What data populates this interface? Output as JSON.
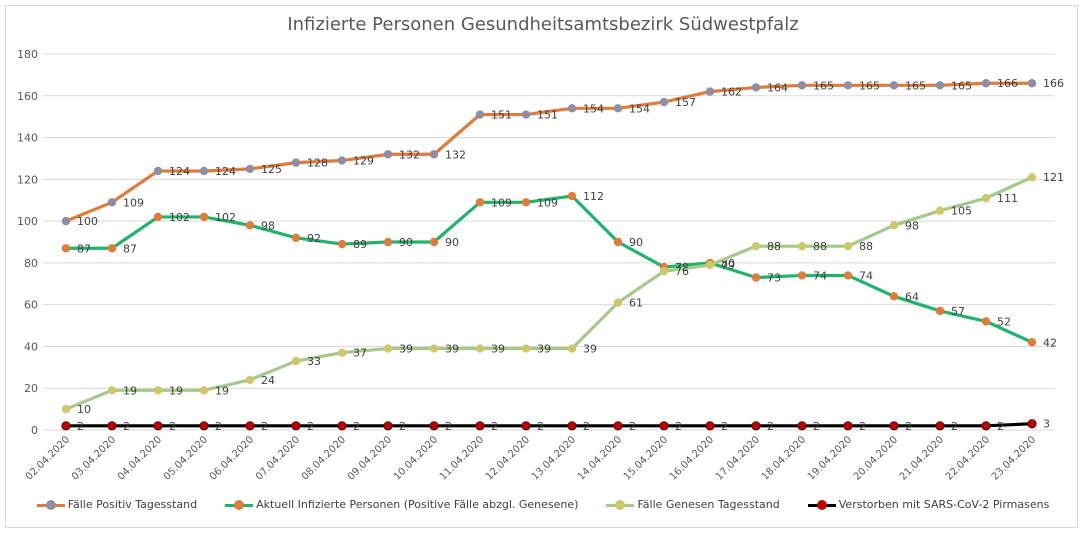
{
  "chart_data": {
    "type": "line",
    "title": "Infizierte Personen Gesundheitsamtsbezirk Südwestpfalz",
    "xlabel": "",
    "ylabel": "",
    "ylim": [
      0,
      180
    ],
    "yticks": [
      0,
      20,
      40,
      60,
      80,
      100,
      120,
      140,
      160,
      180
    ],
    "grid": true,
    "legend_position": "bottom",
    "categories": [
      "02.04.2020",
      "03.04.2020",
      "04.04.2020",
      "05.04.2020",
      "06.04.2020",
      "07.04.2020",
      "08.04.2020",
      "09.04.2020",
      "10.04.2020",
      "11.04.2020",
      "12.04.2020",
      "13.04.2020",
      "14.04.2020",
      "15.04.2020",
      "16.04.2020",
      "17.04.2020",
      "18.04.2020",
      "19.04.2020",
      "20.04.2020",
      "21.04.2020",
      "22.04.2020",
      "23.04.2020"
    ],
    "series": [
      {
        "name": "Fälle Positiv Tagesstand",
        "line_color": "#e07b39",
        "marker_color": "#8e8ea6",
        "values": [
          100,
          109,
          124,
          124,
          125,
          128,
          129,
          132,
          132,
          151,
          151,
          154,
          154,
          157,
          162,
          164,
          165,
          165,
          165,
          165,
          166,
          166
        ]
      },
      {
        "name": "Aktuell Infizierte Personen (Positive Fälle abzgl. Genesene)",
        "line_color": "#1fb36b",
        "marker_color": "#e07b39",
        "values": [
          87,
          87,
          102,
          102,
          98,
          92,
          89,
          90,
          90,
          109,
          109,
          112,
          90,
          78,
          80,
          73,
          74,
          74,
          64,
          57,
          52,
          42
        ]
      },
      {
        "name": "Fälle Genesen Tagesstand",
        "line_color": "#a5c98a",
        "marker_color": "#cfc86a",
        "values": [
          10,
          19,
          19,
          19,
          24,
          33,
          37,
          39,
          39,
          39,
          39,
          39,
          61,
          76,
          79,
          88,
          88,
          88,
          98,
          105,
          111,
          121
        ]
      },
      {
        "name": "Verstorben mit SARS-CoV-2 Pirmasens",
        "line_color": "#000000",
        "marker_color": "#c00000",
        "values": [
          2,
          2,
          2,
          2,
          2,
          2,
          2,
          2,
          2,
          2,
          2,
          2,
          2,
          2,
          2,
          2,
          2,
          2,
          2,
          2,
          2,
          3
        ]
      }
    ]
  }
}
